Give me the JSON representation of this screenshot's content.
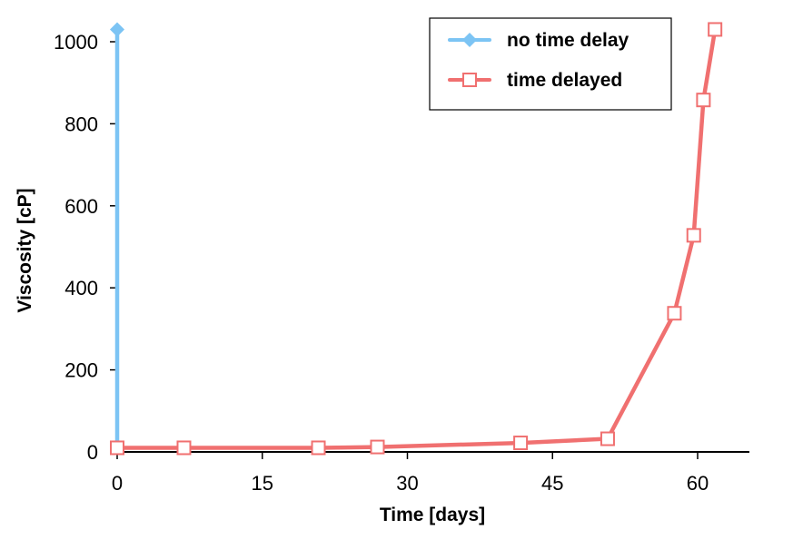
{
  "chart_data": {
    "type": "line",
    "xlabel": "Time [days]",
    "ylabel": "Viscosity [cP]",
    "xlim": [
      0,
      65
    ],
    "ylim": [
      0,
      1000
    ],
    "xticks": [
      "0",
      "15",
      "30",
      "45",
      "60"
    ],
    "yticks": [
      "0",
      "200",
      "400",
      "600",
      "800",
      "1000"
    ],
    "grid": false,
    "legend_position": "top-right",
    "series": [
      {
        "name": "no time delay",
        "color": "#7cc4f4",
        "marker": "diamond-filled",
        "x": [
          0,
          0
        ],
        "y": [
          10,
          1030
        ]
      },
      {
        "name": "time delayed",
        "color": "#f07070",
        "marker": "square-open",
        "x": [
          0,
          6.9,
          20.8,
          26.9,
          41.7,
          50.7,
          57.6,
          59.6,
          60.6,
          61.8
        ],
        "y": [
          10,
          10,
          10,
          12,
          22,
          32,
          338,
          528,
          858,
          1030
        ]
      }
    ]
  }
}
